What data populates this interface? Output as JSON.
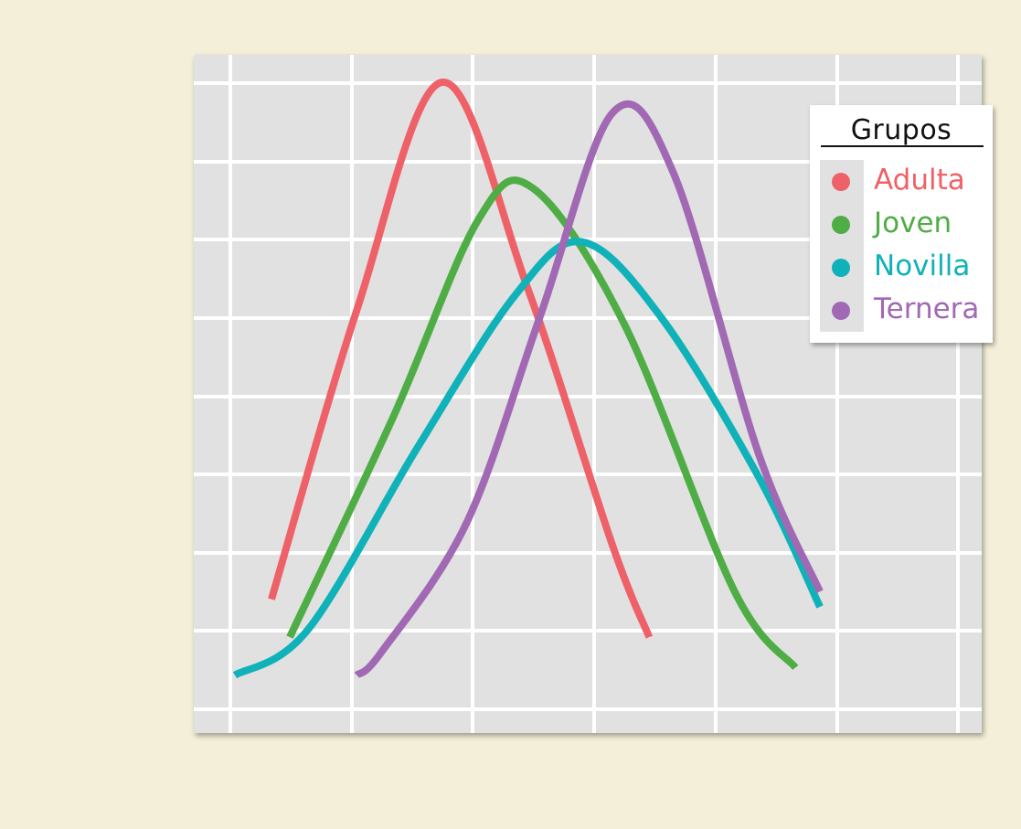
{
  "chart_data": {
    "type": "line",
    "title": "",
    "xlabel": "",
    "ylabel": "",
    "xlim": [
      0,
      6.2
    ],
    "ylim": [
      0,
      0.85
    ],
    "grid": true,
    "x_tick_labels_shown": false,
    "y_tick_labels_shown": false,
    "legend": {
      "title": "Grupos",
      "position": "top-right"
    },
    "series": [
      {
        "name": "Adulta",
        "color": "#ee6168",
        "points": [
          [
            0.3,
            0.14
          ],
          [
            1.0,
            0.52
          ],
          [
            1.7,
            0.82
          ],
          [
            2.4,
            0.55
          ],
          [
            3.1,
            0.21
          ],
          [
            3.4,
            0.09
          ]
        ]
      },
      {
        "name": "Joven",
        "color": "#4fad45",
        "points": [
          [
            0.45,
            0.09
          ],
          [
            1.3,
            0.38
          ],
          [
            2.0,
            0.64
          ],
          [
            2.45,
            0.68
          ],
          [
            3.2,
            0.5
          ],
          [
            4.1,
            0.15
          ],
          [
            4.6,
            0.05
          ]
        ]
      },
      {
        "name": "Novilla",
        "color": "#0fb2b8",
        "points": [
          [
            0.0,
            0.04
          ],
          [
            0.6,
            0.1
          ],
          [
            1.5,
            0.34
          ],
          [
            2.3,
            0.54
          ],
          [
            2.85,
            0.61
          ],
          [
            3.5,
            0.51
          ],
          [
            4.3,
            0.3
          ],
          [
            4.8,
            0.13
          ]
        ]
      },
      {
        "name": "Ternera",
        "color": "#a168b4",
        "points": [
          [
            1.0,
            0.04
          ],
          [
            1.2,
            0.07
          ],
          [
            1.9,
            0.24
          ],
          [
            2.5,
            0.51
          ],
          [
            3.1,
            0.78
          ],
          [
            3.6,
            0.7
          ],
          [
            4.3,
            0.33
          ],
          [
            4.8,
            0.15
          ]
        ]
      }
    ]
  }
}
